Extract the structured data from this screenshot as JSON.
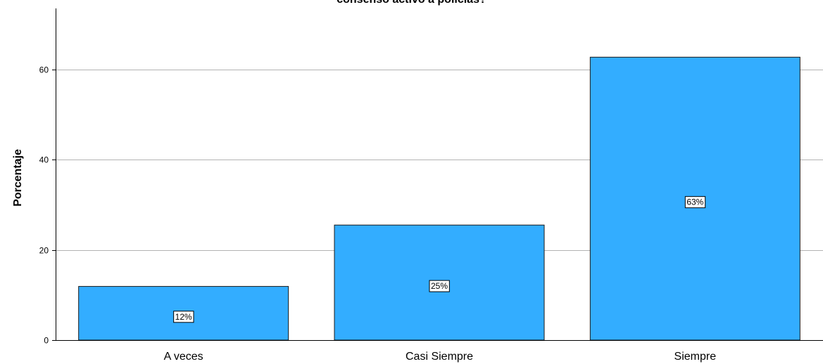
{
  "chart_data": {
    "type": "bar",
    "title": "consenso activo a policías?",
    "ylabel": "Porcentaje",
    "xlabel": "",
    "categories": [
      "A veces",
      "Casi Siempre",
      "Siempre"
    ],
    "values": [
      11.9,
      25.5,
      62.7
    ],
    "data_labels": [
      "12%",
      "25%",
      "63%"
    ],
    "yticks": [
      "0",
      "20",
      "40",
      "60"
    ],
    "ytick_values": [
      0,
      20,
      40,
      60
    ],
    "ylim": [
      0,
      73.5
    ],
    "grid": true,
    "legend": "none",
    "colors": {
      "bar_fill": "#33adff",
      "bar_stroke": "#1a1a1a",
      "grid": "#b3b3b3",
      "axis": "#000000"
    }
  }
}
